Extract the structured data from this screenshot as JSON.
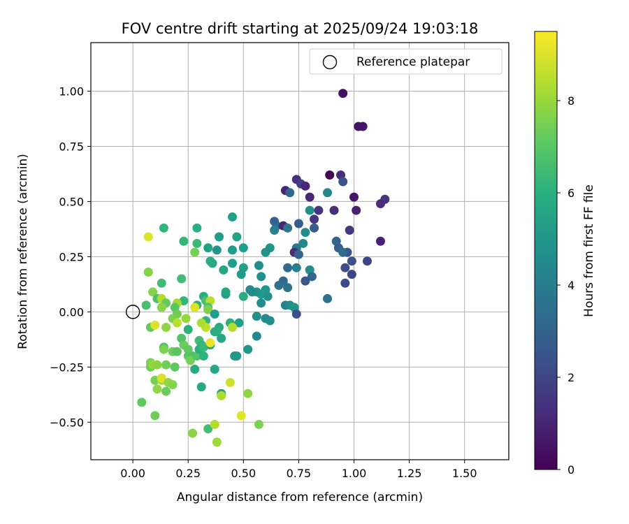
{
  "chart_data": {
    "type": "scatter",
    "title": "FOV centre drift starting at 2025/09/24 19:03:18",
    "xlabel": "Angular distance from reference (arcmin)",
    "ylabel": "Rotation from reference (arcmin)",
    "xlim": [
      -0.19,
      1.7
    ],
    "ylim": [
      -0.67,
      1.22
    ],
    "xticks": [
      "0.00",
      "0.25",
      "0.50",
      "0.75",
      "1.00",
      "1.25",
      "1.50"
    ],
    "xtick_values": [
      0,
      0.25,
      0.5,
      0.75,
      1.0,
      1.25,
      1.5
    ],
    "yticks": [
      "−0.50",
      "−0.25",
      "0.00",
      "0.25",
      "0.50",
      "0.75",
      "1.00"
    ],
    "ytick_values": [
      -0.5,
      -0.25,
      0,
      0.25,
      0.5,
      0.75,
      1.0
    ],
    "grid": true,
    "legend": {
      "position": "top-right",
      "entries": [
        "Reference platepar"
      ]
    },
    "reference_point": {
      "x": 0.0,
      "y": 0.0,
      "label": "Reference platepar"
    },
    "colorbar": {
      "label": "Hours from first FF file",
      "min": 0,
      "max": 9.5,
      "ticks": [
        "0",
        "2",
        "4",
        "6",
        "8"
      ],
      "tick_values": [
        0,
        2,
        4,
        6,
        8
      ],
      "colormap": "viridis"
    },
    "points": [
      {
        "x": 0.95,
        "y": 0.99,
        "h": 0.4
      },
      {
        "x": 1.02,
        "y": 0.84,
        "h": 0.5
      },
      {
        "x": 1.04,
        "y": 0.84,
        "h": 0.6
      },
      {
        "x": 0.89,
        "y": 0.62,
        "h": 0.1
      },
      {
        "x": 0.94,
        "y": 0.62,
        "h": 1.2
      },
      {
        "x": 0.95,
        "y": 0.59,
        "h": 2.5
      },
      {
        "x": 0.74,
        "y": 0.6,
        "h": 1.3
      },
      {
        "x": 0.76,
        "y": 0.58,
        "h": 1.8
      },
      {
        "x": 0.78,
        "y": 0.57,
        "h": 1.0
      },
      {
        "x": 0.69,
        "y": 0.55,
        "h": 1.0
      },
      {
        "x": 0.71,
        "y": 0.54,
        "h": 3.2
      },
      {
        "x": 0.88,
        "y": 0.54,
        "h": 4.5
      },
      {
        "x": 1.0,
        "y": 0.52,
        "h": 0.6
      },
      {
        "x": 1.14,
        "y": 0.51,
        "h": 1.4
      },
      {
        "x": 1.12,
        "y": 0.49,
        "h": 1.2
      },
      {
        "x": 0.8,
        "y": 0.52,
        "h": 1.0
      },
      {
        "x": 0.84,
        "y": 0.46,
        "h": 1.5
      },
      {
        "x": 0.91,
        "y": 0.46,
        "h": 1.2
      },
      {
        "x": 1.01,
        "y": 0.46,
        "h": 0.9
      },
      {
        "x": 0.8,
        "y": 0.46,
        "h": 4.8
      },
      {
        "x": 0.64,
        "y": 0.41,
        "h": 3.0
      },
      {
        "x": 0.65,
        "y": 0.39,
        "h": 3.2
      },
      {
        "x": 0.68,
        "y": 0.39,
        "h": 1.0
      },
      {
        "x": 0.7,
        "y": 0.38,
        "h": 3.6
      },
      {
        "x": 0.75,
        "y": 0.4,
        "h": 2.8
      },
      {
        "x": 0.82,
        "y": 0.42,
        "h": 1.5
      },
      {
        "x": 0.82,
        "y": 0.38,
        "h": 2.8
      },
      {
        "x": 0.78,
        "y": 0.36,
        "h": 4.6
      },
      {
        "x": 0.64,
        "y": 0.37,
        "h": 4.2
      },
      {
        "x": 0.98,
        "y": 0.37,
        "h": 1.6
      },
      {
        "x": 0.92,
        "y": 0.32,
        "h": 3.0
      },
      {
        "x": 1.12,
        "y": 0.32,
        "h": 0.9
      },
      {
        "x": 0.93,
        "y": 0.29,
        "h": 2.8
      },
      {
        "x": 0.97,
        "y": 0.27,
        "h": 2.5
      },
      {
        "x": 0.95,
        "y": 0.27,
        "h": 3.3
      },
      {
        "x": 0.77,
        "y": 0.31,
        "h": 4.4
      },
      {
        "x": 0.74,
        "y": 0.29,
        "h": 3.8
      },
      {
        "x": 0.73,
        "y": 0.27,
        "h": 1.2
      },
      {
        "x": 0.75,
        "y": 0.26,
        "h": 3.1
      },
      {
        "x": 0.99,
        "y": 0.23,
        "h": 2.4
      },
      {
        "x": 1.06,
        "y": 0.23,
        "h": 2.0
      },
      {
        "x": 0.96,
        "y": 0.2,
        "h": 2.3
      },
      {
        "x": 0.99,
        "y": 0.17,
        "h": 2.0
      },
      {
        "x": 0.96,
        "y": 0.13,
        "h": 2.2
      },
      {
        "x": 0.7,
        "y": 0.2,
        "h": 3.3
      },
      {
        "x": 0.74,
        "y": 0.2,
        "h": 4.2
      },
      {
        "x": 0.8,
        "y": 0.19,
        "h": 4.6
      },
      {
        "x": 0.81,
        "y": 0.16,
        "h": 3.1
      },
      {
        "x": 0.78,
        "y": 0.14,
        "h": 2.6
      },
      {
        "x": 0.68,
        "y": 0.14,
        "h": 3.3
      },
      {
        "x": 0.66,
        "y": 0.12,
        "h": 3.4
      },
      {
        "x": 0.7,
        "y": 0.11,
        "h": 3.6
      },
      {
        "x": 0.88,
        "y": 0.06,
        "h": 3.5
      },
      {
        "x": 0.69,
        "y": 0.03,
        "h": 4.2
      },
      {
        "x": 0.71,
        "y": 0.03,
        "h": 4.6
      },
      {
        "x": 0.73,
        "y": 0.02,
        "h": 4.9
      },
      {
        "x": 0.74,
        "y": -0.01,
        "h": 2.3
      },
      {
        "x": 0.62,
        "y": 0.29,
        "h": 5.0
      },
      {
        "x": 0.6,
        "y": 0.27,
        "h": 4.8
      },
      {
        "x": 0.57,
        "y": 0.21,
        "h": 4.6
      },
      {
        "x": 0.58,
        "y": 0.16,
        "h": 4.8
      },
      {
        "x": 0.6,
        "y": 0.1,
        "h": 5.0
      },
      {
        "x": 0.58,
        "y": 0.08,
        "h": 5.2
      },
      {
        "x": 0.56,
        "y": 0.09,
        "h": 4.9
      },
      {
        "x": 0.54,
        "y": 0.09,
        "h": 4.7
      },
      {
        "x": 0.53,
        "y": 0.1,
        "h": 4.5
      },
      {
        "x": 0.58,
        "y": 0.04,
        "h": 4.6
      },
      {
        "x": 0.61,
        "y": 0.07,
        "h": 4.8
      },
      {
        "x": 0.6,
        "y": -0.03,
        "h": 4.4
      },
      {
        "x": 0.62,
        "y": -0.04,
        "h": 4.7
      },
      {
        "x": 0.56,
        "y": -0.02,
        "h": 4.8
      },
      {
        "x": 0.56,
        "y": -0.11,
        "h": 4.5
      },
      {
        "x": 0.52,
        "y": -0.17,
        "h": 5.0
      },
      {
        "x": 0.46,
        "y": -0.2,
        "h": 5.1
      },
      {
        "x": 0.45,
        "y": 0.43,
        "h": 5.4
      },
      {
        "x": 0.39,
        "y": 0.34,
        "h": 5.2
      },
      {
        "x": 0.47,
        "y": 0.34,
        "h": 5.4
      },
      {
        "x": 0.5,
        "y": 0.29,
        "h": 5.3
      },
      {
        "x": 0.45,
        "y": 0.28,
        "h": 5.2
      },
      {
        "x": 0.38,
        "y": 0.28,
        "h": 4.9
      },
      {
        "x": 0.35,
        "y": 0.23,
        "h": 6.0
      },
      {
        "x": 0.36,
        "y": 0.22,
        "h": 5.7
      },
      {
        "x": 0.41,
        "y": 0.19,
        "h": 5.6
      },
      {
        "x": 0.45,
        "y": 0.22,
        "h": 5.3
      },
      {
        "x": 0.5,
        "y": 0.2,
        "h": 5.4
      },
      {
        "x": 0.49,
        "y": 0.17,
        "h": 5.2
      },
      {
        "x": 0.42,
        "y": 0.08,
        "h": 5.3
      },
      {
        "x": 0.42,
        "y": 0.09,
        "h": 5.6
      },
      {
        "x": 0.5,
        "y": 0.07,
        "h": 5.9
      },
      {
        "x": 0.48,
        "y": -0.05,
        "h": 5.3
      },
      {
        "x": 0.44,
        "y": -0.05,
        "h": 6.0
      },
      {
        "x": 0.39,
        "y": -0.07,
        "h": 5.8
      },
      {
        "x": 0.38,
        "y": -0.09,
        "h": 6.1
      },
      {
        "x": 0.37,
        "y": -0.09,
        "h": 5.9
      },
      {
        "x": 0.4,
        "y": -0.12,
        "h": 5.6
      },
      {
        "x": 0.4,
        "y": -0.37,
        "h": 5.4
      },
      {
        "x": 0.47,
        "y": -0.2,
        "h": 5.1
      },
      {
        "x": 0.34,
        "y": 0.29,
        "h": 5.4
      },
      {
        "x": 0.29,
        "y": 0.38,
        "h": 5.9
      },
      {
        "x": 0.29,
        "y": 0.31,
        "h": 6.4
      },
      {
        "x": 0.23,
        "y": 0.32,
        "h": 6.3
      },
      {
        "x": 0.28,
        "y": 0.27,
        "h": 7.5
      },
      {
        "x": 0.22,
        "y": 0.15,
        "h": 6.6
      },
      {
        "x": 0.14,
        "y": 0.38,
        "h": 6.2
      },
      {
        "x": 0.13,
        "y": 0.13,
        "h": 6.5
      },
      {
        "x": 0.32,
        "y": 0.07,
        "h": 5.9
      },
      {
        "x": 0.33,
        "y": 0.05,
        "h": 6.7
      },
      {
        "x": 0.35,
        "y": 0.05,
        "h": 8.5
      },
      {
        "x": 0.34,
        "y": 0.02,
        "h": 6.8
      },
      {
        "x": 0.34,
        "y": 0.01,
        "h": 7.6
      },
      {
        "x": 0.37,
        "y": -0.01,
        "h": 5.3
      },
      {
        "x": 0.33,
        "y": -0.04,
        "h": 6.2
      },
      {
        "x": 0.33,
        "y": -0.07,
        "h": 8.6
      },
      {
        "x": 0.31,
        "y": -0.05,
        "h": 8.3
      },
      {
        "x": 0.29,
        "y": 0.03,
        "h": 6.0
      },
      {
        "x": 0.28,
        "y": 0.02,
        "h": 9.0
      },
      {
        "x": 0.23,
        "y": 0.05,
        "h": 6.3
      },
      {
        "x": 0.2,
        "y": 0.04,
        "h": 8.2
      },
      {
        "x": 0.19,
        "y": 0.02,
        "h": 7.0
      },
      {
        "x": 0.2,
        "y": -0.01,
        "h": 7.4
      },
      {
        "x": 0.18,
        "y": -0.03,
        "h": 7.6
      },
      {
        "x": 0.2,
        "y": -0.05,
        "h": 8.5
      },
      {
        "x": 0.24,
        "y": -0.03,
        "h": 8.0
      },
      {
        "x": 0.25,
        "y": -0.08,
        "h": 6.0
      },
      {
        "x": 0.22,
        "y": -0.12,
        "h": 6.8
      },
      {
        "x": 0.23,
        "y": -0.15,
        "h": 7.3
      },
      {
        "x": 0.25,
        "y": -0.17,
        "h": 7.1
      },
      {
        "x": 0.25,
        "y": -0.2,
        "h": 7.0
      },
      {
        "x": 0.27,
        "y": -0.2,
        "h": 6.8
      },
      {
        "x": 0.26,
        "y": -0.22,
        "h": 7.5
      },
      {
        "x": 0.29,
        "y": -0.2,
        "h": 6.9
      },
      {
        "x": 0.3,
        "y": -0.13,
        "h": 6.6
      },
      {
        "x": 0.31,
        "y": -0.15,
        "h": 6.3
      },
      {
        "x": 0.3,
        "y": -0.17,
        "h": 5.9
      },
      {
        "x": 0.32,
        "y": -0.16,
        "h": 6.4
      },
      {
        "x": 0.35,
        "y": -0.15,
        "h": 5.7
      },
      {
        "x": 0.35,
        "y": -0.14,
        "h": 9.2
      },
      {
        "x": 0.32,
        "y": -0.2,
        "h": 6.0
      },
      {
        "x": 0.28,
        "y": -0.26,
        "h": 5.8
      },
      {
        "x": 0.37,
        "y": -0.26,
        "h": 5.6
      },
      {
        "x": 0.31,
        "y": -0.34,
        "h": 5.7
      },
      {
        "x": 0.34,
        "y": -0.53,
        "h": 6.6
      },
      {
        "x": 0.37,
        "y": -0.51,
        "h": 8.4
      },
      {
        "x": 0.38,
        "y": -0.59,
        "h": 8.1
      },
      {
        "x": 0.27,
        "y": -0.55,
        "h": 7.8
      },
      {
        "x": 0.4,
        "y": -0.38,
        "h": 8.3
      },
      {
        "x": 0.44,
        "y": -0.32,
        "h": 8.8
      },
      {
        "x": 0.52,
        "y": -0.37,
        "h": 7.9
      },
      {
        "x": 0.49,
        "y": -0.47,
        "h": 9.1
      },
      {
        "x": 0.57,
        "y": -0.51,
        "h": 7.6
      },
      {
        "x": 0.45,
        "y": -0.07,
        "h": 8.4
      },
      {
        "x": 0.07,
        "y": 0.34,
        "h": 9.0
      },
      {
        "x": 0.07,
        "y": 0.18,
        "h": 7.7
      },
      {
        "x": 0.06,
        "y": 0.03,
        "h": 6.7
      },
      {
        "x": 0.09,
        "y": 0.09,
        "h": 7.7
      },
      {
        "x": 0.11,
        "y": 0.06,
        "h": 6.8
      },
      {
        "x": 0.13,
        "y": 0.06,
        "h": 8.4
      },
      {
        "x": 0.15,
        "y": 0.04,
        "h": 7.2
      },
      {
        "x": 0.13,
        "y": 0.02,
        "h": 7.8
      },
      {
        "x": 0.08,
        "y": -0.07,
        "h": 7.2
      },
      {
        "x": 0.1,
        "y": -0.06,
        "h": 9.0
      },
      {
        "x": 0.15,
        "y": -0.07,
        "h": 7.9
      },
      {
        "x": 0.14,
        "y": -0.16,
        "h": 6.8
      },
      {
        "x": 0.14,
        "y": -0.17,
        "h": 7.6
      },
      {
        "x": 0.18,
        "y": -0.18,
        "h": 7.3
      },
      {
        "x": 0.2,
        "y": -0.18,
        "h": 7.0
      },
      {
        "x": 0.08,
        "y": -0.23,
        "h": 7.6
      },
      {
        "x": 0.08,
        "y": -0.25,
        "h": 7.3
      },
      {
        "x": 0.09,
        "y": -0.24,
        "h": 8.0
      },
      {
        "x": 0.11,
        "y": -0.24,
        "h": 7.8
      },
      {
        "x": 0.15,
        "y": -0.24,
        "h": 7.4
      },
      {
        "x": 0.19,
        "y": -0.25,
        "h": 7.1
      },
      {
        "x": 0.1,
        "y": -0.31,
        "h": 7.5
      },
      {
        "x": 0.13,
        "y": -0.31,
        "h": 8.2
      },
      {
        "x": 0.13,
        "y": -0.3,
        "h": 9.0
      },
      {
        "x": 0.16,
        "y": -0.32,
        "h": 7.9
      },
      {
        "x": 0.18,
        "y": -0.33,
        "h": 7.7
      },
      {
        "x": 0.11,
        "y": -0.35,
        "h": 7.9
      },
      {
        "x": 0.15,
        "y": -0.36,
        "h": 7.3
      },
      {
        "x": 0.04,
        "y": -0.41,
        "h": 7.1
      },
      {
        "x": 0.1,
        "y": -0.47,
        "h": 7.4
      }
    ]
  }
}
